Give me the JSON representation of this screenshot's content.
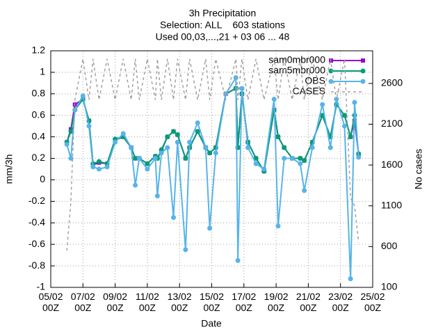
{
  "chart_data": {
    "type": "line",
    "title": "3h Precipitation",
    "subtitle": [
      "Selection: ALL    603 stations",
      "Used 00,03,...,21 + 03 06 ... 48"
    ],
    "xlabel": "Date",
    "ylabel": "mm/3h",
    "y2label": "No cases",
    "x": [
      "06/02 00Z",
      "06/02 06Z",
      "06/02 12Z",
      "07/02 00Z",
      "07/02 09Z",
      "07/02 15Z",
      "08/02 00Z",
      "08/02 12Z",
      "09/02 00Z",
      "09/02 12Z",
      "10/02 00Z",
      "10/02 06Z",
      "10/02 12Z",
      "11/02 00Z",
      "11/02 12Z",
      "11/02 15Z",
      "11/02 21Z",
      "12/02 06Z",
      "12/02 15Z",
      "12/02 21Z",
      "13/02 09Z",
      "13/02 15Z",
      "14/02 03Z",
      "14/02 15Z",
      "14/02 21Z",
      "15/02 06Z",
      "15/02 21Z",
      "16/02 12Z",
      "16/02 15Z",
      "16/02 21Z",
      "17/02 06Z",
      "17/02 18Z",
      "18/02 06Z",
      "18/02 21Z",
      "19/02 03Z",
      "19/02 12Z",
      "20/02 00Z",
      "20/02 12Z",
      "20/02 18Z",
      "21/02 06Z",
      "21/02 21Z",
      "22/02 09Z",
      "22/02 18Z",
      "23/02 06Z",
      "23/02 15Z",
      "23/02 21Z",
      "24/02 03Z"
    ],
    "series": [
      {
        "name": "sam0mbr000",
        "color": "#9400d3",
        "marker": "square",
        "values": [
          0.35,
          0.47,
          0.7,
          0.75,
          0.55,
          0.14,
          0.16,
          0.15,
          0.37,
          0.4,
          0.3,
          0.2,
          0.2,
          0.15,
          0.22,
          0.2,
          0.27,
          0.4,
          0.45,
          0.42,
          0.2,
          0.3,
          0.45,
          0.3,
          0.25,
          0.3,
          0.8,
          0.85,
          0.3,
          0.8,
          0.35,
          0.2,
          0.08,
          0.65,
          0.4,
          0.3,
          0.2,
          0.2,
          0.18,
          0.35,
          0.6,
          0.4,
          0.7,
          0.6,
          0.4,
          0.55,
          0.24
        ]
      },
      {
        "name": "sam5mbr000",
        "color": "#009e73",
        "marker": "circle",
        "values": [
          0.35,
          0.45,
          0.65,
          0.75,
          0.55,
          0.15,
          0.17,
          0.15,
          0.38,
          0.4,
          0.3,
          0.2,
          0.2,
          0.15,
          0.22,
          0.2,
          0.28,
          0.4,
          0.45,
          0.42,
          0.2,
          0.3,
          0.45,
          0.3,
          0.25,
          0.3,
          0.8,
          0.85,
          0.3,
          0.8,
          0.35,
          0.2,
          0.08,
          0.65,
          0.4,
          0.3,
          0.2,
          0.2,
          0.18,
          0.35,
          0.6,
          0.4,
          0.7,
          0.6,
          0.4,
          0.6,
          0.24
        ]
      },
      {
        "name": "OBS",
        "color": "#56b4e9",
        "marker": "circle",
        "values": [
          0.33,
          0.2,
          0.65,
          0.78,
          0.5,
          0.12,
          0.1,
          0.12,
          0.35,
          0.43,
          0.3,
          -0.05,
          0.2,
          0.1,
          0.2,
          -0.15,
          0.25,
          0.3,
          -0.35,
          0.35,
          -0.65,
          0.35,
          0.53,
          0.3,
          -0.45,
          0.25,
          0.8,
          0.95,
          -0.75,
          0.85,
          0.3,
          0.15,
          0.1,
          0.75,
          -0.43,
          0.2,
          0.2,
          0.15,
          -0.1,
          0.3,
          0.7,
          0.3,
          0.75,
          0.5,
          -0.92,
          0.72,
          0.21
        ]
      },
      {
        "name": "CASES",
        "color": "#a0a0a0",
        "marker": "none",
        "dashed": true,
        "axis": "y2",
        "values": [
          550,
          1150,
          2400,
          2900,
          2400,
          2900,
          2400,
          2900,
          2400,
          2900,
          2400,
          2900,
          2400,
          2900,
          2400,
          2900,
          2400,
          2900,
          2400,
          2900,
          2400,
          2900,
          2400,
          2900,
          2400,
          2900,
          2400,
          2900,
          2400,
          2900,
          2400,
          2900,
          2400,
          2900,
          2400,
          2900,
          2400,
          2900,
          2400,
          2900,
          2400,
          2900,
          2400,
          2900,
          1200,
          1100,
          650
        ]
      }
    ],
    "xlim": [
      "05/02 00Z",
      "25/02 00Z"
    ],
    "xticks": [
      "05/02 00Z",
      "07/02 00Z",
      "09/02 00Z",
      "11/02 00Z",
      "13/02 00Z",
      "15/02 00Z",
      "17/02 00Z",
      "19/02 00Z",
      "21/02 00Z",
      "23/02 00Z",
      "25/02 00Z"
    ],
    "ylim": [
      -1,
      1.2
    ],
    "yticks": [
      -1,
      -0.8,
      -0.6,
      -0.4,
      -0.2,
      0,
      0.2,
      0.4,
      0.6,
      0.8,
      1,
      1.2
    ],
    "y2lim": [
      100,
      3000
    ],
    "y2ticks": [
      100,
      600,
      1100,
      1600,
      2100,
      2600
    ],
    "grid": true,
    "legend": "top-right"
  }
}
